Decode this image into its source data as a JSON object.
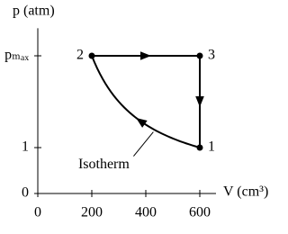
{
  "chart_data": {
    "type": "cycle",
    "x_label": "V (cm³)",
    "y_label": "p (atm)",
    "x": [
      600,
      200,
      600
    ],
    "y": [
      1,
      3,
      3
    ],
    "point_labels": [
      "1",
      "2",
      "3"
    ],
    "annotation": "Isotherm",
    "color": "#000000",
    "xlim": [
      0,
      660
    ],
    "ylim": [
      0,
      3.6
    ],
    "xticks": [
      0,
      200,
      400,
      600
    ],
    "yticks": [
      0,
      1,
      {
        "value": 3,
        "label": "pₘₐₓ"
      }
    ]
  }
}
